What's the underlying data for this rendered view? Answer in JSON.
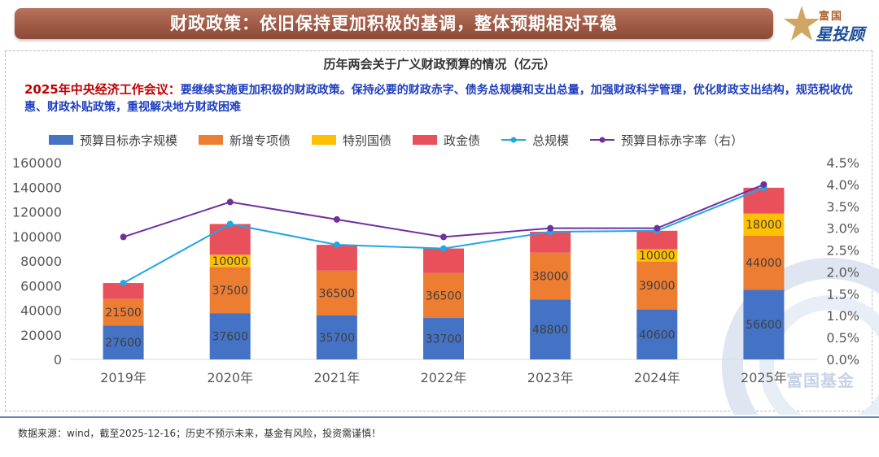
{
  "header": {
    "title": "财政政策：依旧保持更加积极的基调，整体预期相对平稳",
    "logo_top": "富国",
    "logo_main": "星投顾"
  },
  "note": {
    "head": "2025年中央经济工作会议：",
    "body": "要继续实施更加积极的财政政策。保持必要的财政赤字、债务总规模和支出总量，加强财政科学管理，优化财政支出结构，规范税收优惠、财政补贴政策，重视解决地方财政困难"
  },
  "watermark": "富国基金",
  "footer": {
    "source": "数据来源：wind，截至2025-12-16；历史不预示未来，基金有风险，投资需谨慎！"
  },
  "colors": {
    "deficit": "#4472c4",
    "special_bonds": "#ed7d31",
    "treasury": "#ffc000",
    "policy_bonds": "#e8505b",
    "total_line": "#1fa7e6",
    "rate_line": "#7030a0"
  },
  "chart_data": {
    "type": "bar",
    "stacked": true,
    "title": "历年两会关于广义财政预算的情况（亿元）",
    "categories": [
      "2019年",
      "2020年",
      "2021年",
      "2022年",
      "2023年",
      "2024年",
      "2025年"
    ],
    "series": [
      {
        "name": "预算目标赤字规模",
        "color_key": "deficit",
        "values": [
          27600,
          37600,
          35700,
          33700,
          48800,
          40600,
          56600
        ],
        "labels": [
          "27600",
          "37600",
          "35700",
          "33700",
          "48800",
          "40600",
          "56600"
        ]
      },
      {
        "name": "新增专项债",
        "color_key": "special_bonds",
        "values": [
          21500,
          37500,
          36500,
          36500,
          38000,
          39000,
          44000
        ],
        "labels": [
          "21500",
          "37500",
          "36500",
          "36500",
          "38000",
          "39000",
          "44000"
        ]
      },
      {
        "name": "特别国债",
        "color_key": "treasury",
        "values": [
          0,
          10000,
          0,
          0,
          0,
          10000,
          18000
        ],
        "labels": [
          "",
          "10000",
          "",
          "",
          "",
          "10000",
          "18000"
        ]
      },
      {
        "name": "政金债",
        "color_key": "policy_bonds",
        "values": [
          13000,
          25000,
          21000,
          20000,
          17000,
          15000,
          21000
        ],
        "labels": [
          "",
          "",
          "",
          "",
          "",
          "",
          ""
        ]
      }
    ],
    "lines": [
      {
        "name": "总规模",
        "color_key": "total_line",
        "axis": "left",
        "values": [
          62100,
          110100,
          93200,
          90200,
          103800,
          104600,
          139600
        ]
      },
      {
        "name": "预算目标赤字率（右）",
        "color_key": "rate_line",
        "axis": "right",
        "values": [
          2.8,
          3.6,
          3.2,
          2.8,
          3.0,
          3.0,
          4.0
        ]
      }
    ],
    "y_left": {
      "min": 0,
      "max": 160000,
      "ticks": [
        "0",
        "20000",
        "40000",
        "60000",
        "80000",
        "100000",
        "120000",
        "140000",
        "160000"
      ]
    },
    "y_right": {
      "min": 0,
      "max": 4.5,
      "ticks": [
        "0.0%",
        "0.5%",
        "1.0%",
        "1.5%",
        "2.0%",
        "2.5%",
        "3.0%",
        "3.5%",
        "4.0%",
        "4.5%"
      ]
    },
    "legend": [
      "预算目标赤字规模",
      "新增专项债",
      "特别国债",
      "政金债",
      "总规模",
      "预算目标赤字率（右）"
    ],
    "legend_position": "top"
  }
}
